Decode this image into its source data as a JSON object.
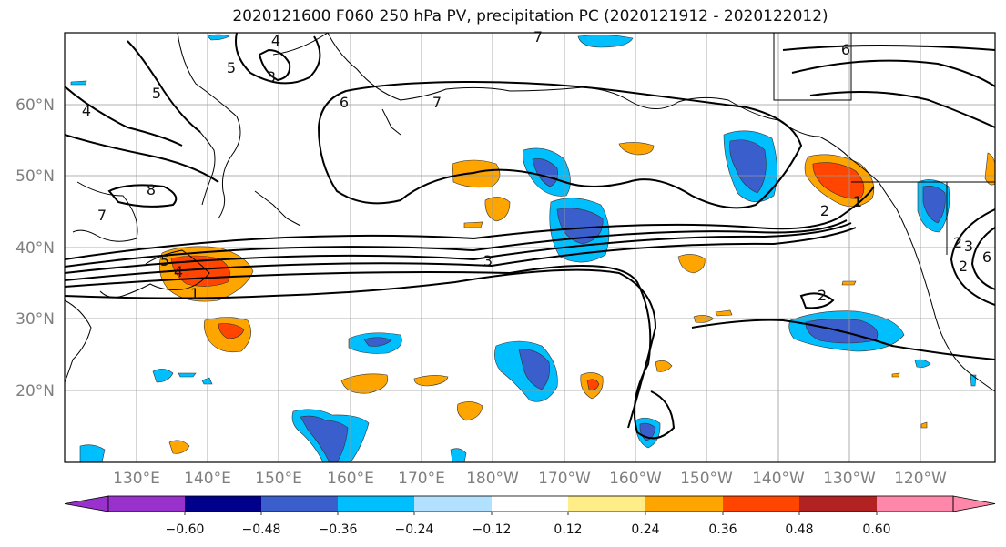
{
  "title": "2020121600 F060 250 hPa PV, precipitation PC (2020121912 - 2020122012)",
  "map": {
    "lat_labels": [
      "60°N",
      "50°N",
      "40°N",
      "30°N",
      "20°N"
    ],
    "lon_labels": [
      "130°E",
      "140°E",
      "150°E",
      "160°E",
      "170°E",
      "180°W",
      "170°W",
      "160°W",
      "150°W",
      "140°W",
      "130°W",
      "120°W"
    ],
    "pv_contour_labels": [
      "4",
      "5",
      "3",
      "5",
      "4",
      "6",
      "7",
      "7",
      "8",
      "7",
      "6",
      "3",
      "5",
      "4",
      "1",
      "2",
      "2",
      "1",
      "2",
      "2",
      "3",
      "6"
    ],
    "fill_colors": {
      "pos_1": "#ffee88",
      "pos_2": "#ffa500",
      "pos_3": "#ff4500",
      "neg_1": "#b2e0ff",
      "neg_2": "#00bfff",
      "neg_3": "#3a5fcd"
    }
  },
  "colorbar": {
    "tick_labels": [
      "−0.60",
      "−0.48",
      "−0.36",
      "−0.24",
      "−0.12",
      "0.12",
      "0.24",
      "0.36",
      "0.48",
      "0.60"
    ],
    "colors": [
      "#9932cc",
      "#00008b",
      "#3a5fcd",
      "#00bfff",
      "#b2e0ff",
      "#ffffff",
      "#ffee88",
      "#ffa500",
      "#ff4500",
      "#b22222",
      "#ff88aa"
    ]
  }
}
